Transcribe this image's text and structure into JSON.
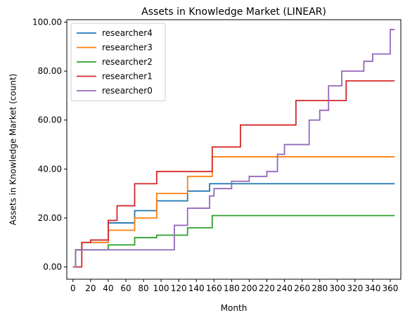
{
  "chart_data": {
    "type": "line",
    "title": "Assets in Knowledge Market (LINEAR)",
    "xlabel": "Month",
    "ylabel": "Assets in Knowledge Market (count)",
    "xlim": [
      -7,
      372
    ],
    "ylim": [
      -5,
      101
    ],
    "xticks": [
      0,
      20,
      40,
      60,
      80,
      100,
      120,
      140,
      160,
      180,
      200,
      220,
      240,
      260,
      280,
      300,
      320,
      340,
      360
    ],
    "xtick_labels": [
      "0",
      "20",
      "40",
      "60",
      "80",
      "100",
      "120",
      "140",
      "160",
      "180",
      "200",
      "220",
      "240",
      "260",
      "280",
      "300",
      "320",
      "340",
      "360"
    ],
    "yticks": [
      0,
      20,
      40,
      60,
      80,
      100
    ],
    "ytick_labels": [
      "0.00",
      "20.00",
      "40.00",
      "60.00",
      "80.00",
      "100.00"
    ],
    "step": "post",
    "grid": false,
    "legend_position": "upper-left",
    "series": [
      {
        "name": "researcher4",
        "color": "#1f77b4",
        "x": [
          0,
          3,
          10,
          40,
          70,
          95,
          130,
          155,
          158,
          365
        ],
        "y": [
          0,
          7,
          10,
          18,
          23,
          27,
          31,
          34,
          34,
          34
        ]
      },
      {
        "name": "researcher3",
        "color": "#ff7f0e",
        "x": [
          0,
          3,
          10,
          40,
          70,
          95,
          130,
          158,
          365
        ],
        "y": [
          0,
          7,
          10,
          15,
          20,
          30,
          37,
          45,
          45
        ]
      },
      {
        "name": "researcher2",
        "color": "#2ca02c",
        "x": [
          0,
          3,
          40,
          70,
          95,
          130,
          158,
          365
        ],
        "y": [
          0,
          7,
          9,
          12,
          13,
          16,
          21,
          21
        ]
      },
      {
        "name": "researcher1",
        "color": "#d62728",
        "x": [
          0,
          10,
          20,
          40,
          50,
          70,
          95,
          158,
          190,
          253,
          310,
          365
        ],
        "y": [
          0,
          10,
          11,
          19,
          25,
          34,
          39,
          49,
          58,
          68,
          76,
          76
        ]
      },
      {
        "name": "researcher0",
        "color": "#9467bd",
        "x": [
          0,
          3,
          80,
          115,
          130,
          155,
          160,
          180,
          200,
          220,
          232,
          240,
          268,
          280,
          290,
          305,
          330,
          340,
          350,
          360,
          365
        ],
        "y": [
          0,
          7,
          7,
          17,
          24,
          29,
          32,
          35,
          37,
          39,
          46,
          50,
          60,
          64,
          74,
          80,
          84,
          87,
          87,
          97,
          97
        ]
      }
    ]
  }
}
